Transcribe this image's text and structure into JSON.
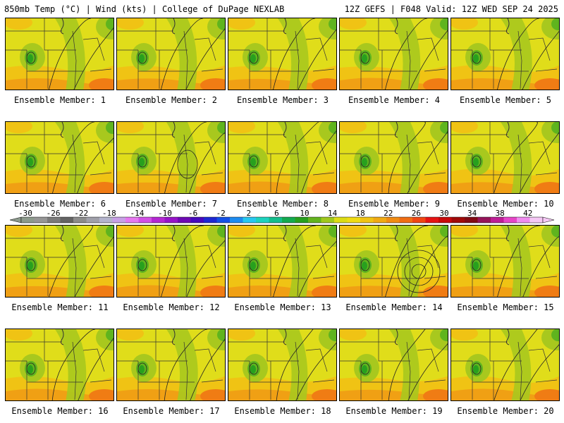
{
  "header": {
    "left": "850mb Temp (°C) | Wind (kts) | College of DuPage NEXLAB",
    "right": "12Z GEFS | F048 Valid: 12Z WED SEP 24 2025"
  },
  "members": [
    {
      "label": "Ensemble Member: 1"
    },
    {
      "label": "Ensemble Member: 2"
    },
    {
      "label": "Ensemble Member: 3"
    },
    {
      "label": "Ensemble Member: 4"
    },
    {
      "label": "Ensemble Member: 5"
    },
    {
      "label": "Ensemble Member: 6"
    },
    {
      "label": "Ensemble Member: 7"
    },
    {
      "label": "Ensemble Member: 8"
    },
    {
      "label": "Ensemble Member: 9"
    },
    {
      "label": "Ensemble Member: 10"
    },
    {
      "label": "Ensemble Member: 11"
    },
    {
      "label": "Ensemble Member: 12"
    },
    {
      "label": "Ensemble Member: 13"
    },
    {
      "label": "Ensemble Member: 14"
    },
    {
      "label": "Ensemble Member: 15"
    },
    {
      "label": "Ensemble Member: 16"
    },
    {
      "label": "Ensemble Member: 17"
    },
    {
      "label": "Ensemble Member: 18"
    },
    {
      "label": "Ensemble Member: 19"
    },
    {
      "label": "Ensemble Member: 20"
    }
  ],
  "colorbar": {
    "tick_labels": [
      "-30",
      "-26",
      "-22",
      "-18",
      "-14",
      "-10",
      "-6",
      "-2",
      "2",
      "6",
      "10",
      "14",
      "18",
      "22",
      "26",
      "30",
      "34",
      "38",
      "42"
    ],
    "colors": [
      "#8c9a8c",
      "#969696",
      "#7a7a7a",
      "#646464",
      "#8c8c8c",
      "#a0a0aa",
      "#b4b4cd",
      "#c8a0e6",
      "#e678f0",
      "#d250e6",
      "#b428d2",
      "#9614c8",
      "#6e0ab4",
      "#460abe",
      "#1e28d2",
      "#1450e6",
      "#1e8cf0",
      "#28c8f0",
      "#1ed2be",
      "#14be8c",
      "#14aa50",
      "#28a01e",
      "#64b41e",
      "#a0c81e",
      "#dcdc14",
      "#f0dc14",
      "#f0c314",
      "#f0aa14",
      "#f08c14",
      "#f06e14",
      "#f04614",
      "#e61414",
      "#c80a0a",
      "#a00a0a",
      "#820a14",
      "#96145a",
      "#be1e96",
      "#e646c8",
      "#f08cf0",
      "#f5c8f5"
    ]
  },
  "map_colors": {
    "base": "#e0dd1a",
    "green_light": "#a8c81e",
    "green": "#5fb41e",
    "green_dark": "#28a01e",
    "orange_light": "#f0c314",
    "orange": "#f0a014",
    "orange_dark": "#f07c14",
    "lines": "#333333"
  }
}
